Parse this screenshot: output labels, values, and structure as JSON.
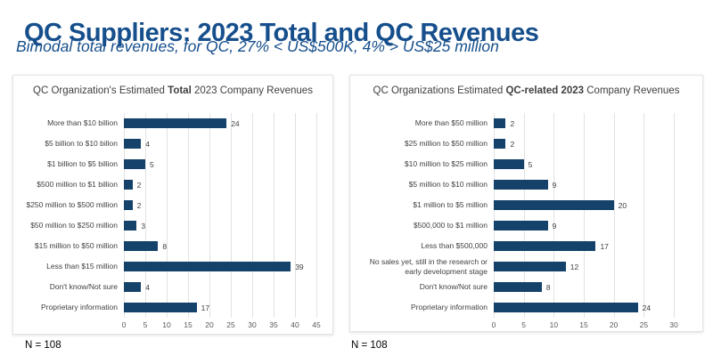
{
  "page": {
    "title": "QC Suppliers: 2023 Total and QC Revenues",
    "subtitle": "Bimodal total revenues, for QC, 27% < US$500K, 4% > US$25 million"
  },
  "colors": {
    "title_blue": "#164F8C",
    "bar": "#14426B",
    "gridline": "#E2E2E2",
    "label_text": "#3F3F3F",
    "tick_text": "#595959"
  },
  "chart_data": [
    {
      "type": "bar",
      "orientation": "horizontal",
      "title_prefix": "QC Organization's Estimated ",
      "title_bold": "Total",
      "title_suffix": " 2023 Company Revenues",
      "categories": [
        "More than $10 billion",
        "$5 billion to $10 billon",
        "$1 billion to $5 billion",
        "$500 million to $1 billion",
        "$250 million to $500 million",
        "$50 million to $250 million",
        "$15 million to $50 million",
        "Less than $15 million",
        "Don't know/Not sure",
        "Proprietary information"
      ],
      "values": [
        24,
        4,
        5,
        2,
        2,
        3,
        8,
        39,
        4,
        17
      ],
      "xlabel": "",
      "ylabel": "",
      "xlim": [
        0,
        45
      ],
      "xmax": 45,
      "ticks": [
        0,
        5,
        10,
        15,
        20,
        25,
        30,
        35,
        40,
        45
      ],
      "grid": "vertical",
      "n_label": "N = 108"
    },
    {
      "type": "bar",
      "orientation": "horizontal",
      "title_prefix": "QC Organizations Estimated ",
      "title_bold": "QC-related 2023",
      "title_suffix": " Company Revenues",
      "categories": [
        "More than $50 million",
        "$25 million to $50 million",
        "$10 million to $25 million",
        "$5 million to $10 million",
        "$1 million to $5 million",
        "$500,000 to $1 million",
        "Less than $500,000",
        "No sales yet, still in the research or early development stage",
        "Don't know/Not sure",
        "Proprietary information"
      ],
      "values": [
        2,
        2,
        5,
        9,
        20,
        9,
        17,
        12,
        8,
        24
      ],
      "xlabel": "",
      "ylabel": "",
      "xlim": [
        0,
        30
      ],
      "xmax": 30,
      "ticks": [
        0,
        5,
        10,
        15,
        20,
        25,
        30
      ],
      "grid": "vertical",
      "n_label": "N = 108"
    }
  ]
}
